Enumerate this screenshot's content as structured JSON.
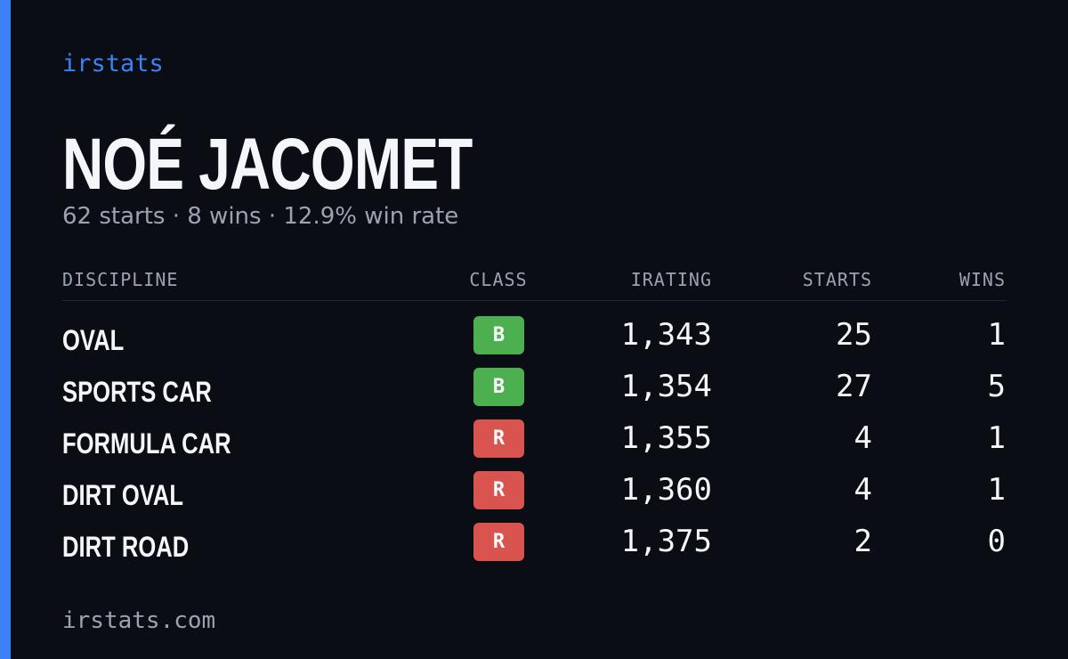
{
  "brand": "irstats",
  "name": "NOÉ JACOMET",
  "subtitle": "62 starts · 8 wins · 12.9% win rate",
  "table": {
    "headers": [
      "DISCIPLINE",
      "CLASS",
      "IRATING",
      "STARTS",
      "WINS"
    ],
    "rows": [
      {
        "discipline": "OVAL",
        "class": "B",
        "class_color": "#4caf50",
        "irating": "1,343",
        "starts": "25",
        "wins": "1"
      },
      {
        "discipline": "SPORTS CAR",
        "class": "B",
        "class_color": "#4caf50",
        "irating": "1,354",
        "starts": "27",
        "wins": "5"
      },
      {
        "discipline": "FORMULA CAR",
        "class": "R",
        "class_color": "#d9534f",
        "irating": "1,355",
        "starts": "4",
        "wins": "1"
      },
      {
        "discipline": "DIRT OVAL",
        "class": "R",
        "class_color": "#d9534f",
        "irating": "1,360",
        "starts": "4",
        "wins": "1"
      },
      {
        "discipline": "DIRT ROAD",
        "class": "R",
        "class_color": "#d9534f",
        "irating": "1,375",
        "starts": "2",
        "wins": "0"
      }
    ]
  },
  "footer": "irstats.com"
}
